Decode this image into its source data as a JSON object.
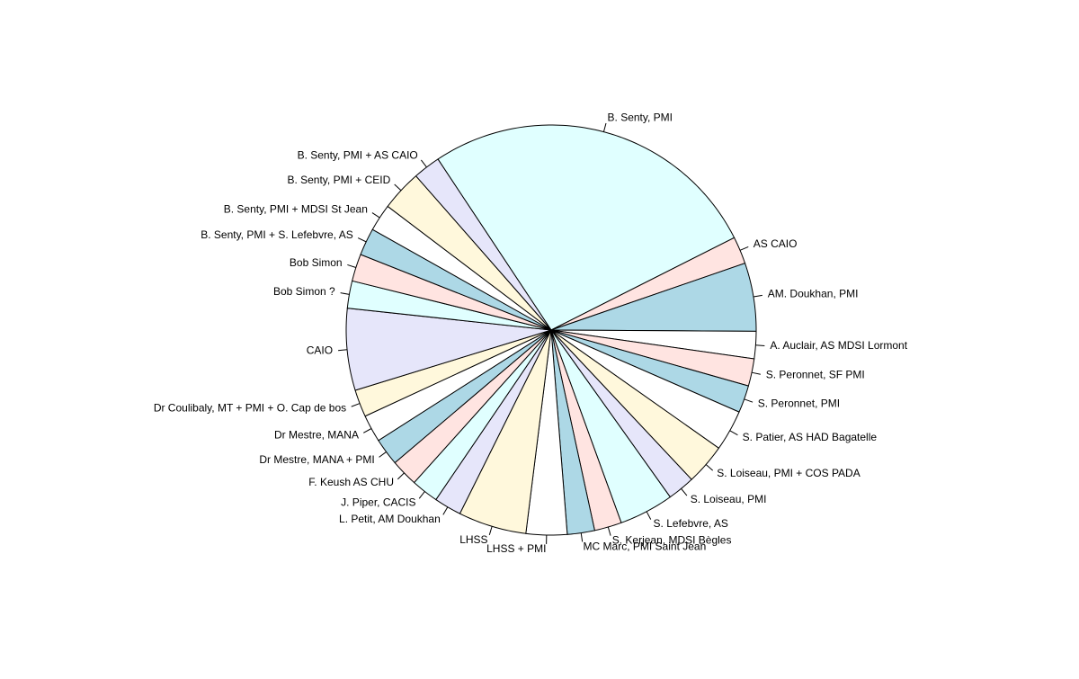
{
  "chart_data": {
    "type": "pie",
    "title": "",
    "start_angle_deg": 123.54,
    "direction": "clockwise",
    "slices": [
      {
        "label": "B. Senty, PMI",
        "value": 25,
        "color": "#E0FFFF"
      },
      {
        "label": "AS CAIO",
        "value": 2,
        "color": "#FFE4E1"
      },
      {
        "label": "AM. Doukhan, PMI",
        "value": 5,
        "color": "#ADD8E6"
      },
      {
        "label": "A. Auclair, AS MDSI Lormont",
        "value": 2,
        "color": "#FFFFFF"
      },
      {
        "label": "S. Peronnet, SF PMI",
        "value": 2,
        "color": "#FFE4E1"
      },
      {
        "label": "S. Peronnet, PMI",
        "value": 2,
        "color": "#ADD8E6"
      },
      {
        "label": "S. Patier, AS HAD Bagatelle",
        "value": 3,
        "color": "#FFFFFF"
      },
      {
        "label": "S. Loiseau, PMI + COS PADA",
        "value": 3,
        "color": "#FFF8DC"
      },
      {
        "label": "S. Loiseau, PMI",
        "value": 2,
        "color": "#E6E6FA"
      },
      {
        "label": "S. Lefebvre, AS",
        "value": 4,
        "color": "#E0FFFF"
      },
      {
        "label": "S. Kerjean, MDSI Bègles",
        "value": 2,
        "color": "#FFE4E1"
      },
      {
        "label": "MC Marc, PMI Saint Jean",
        "value": 2,
        "color": "#ADD8E6"
      },
      {
        "label": "LHSS + PMI",
        "value": 3,
        "color": "#FFFFFF"
      },
      {
        "label": "LHSS",
        "value": 5,
        "color": "#FFF8DC"
      },
      {
        "label": "L. Petit, AM Doukhan",
        "value": 2,
        "color": "#E6E6FA"
      },
      {
        "label": "J. Piper, CACIS",
        "value": 2,
        "color": "#E0FFFF"
      },
      {
        "label": "F. Keush AS CHU",
        "value": 2,
        "color": "#FFE4E1"
      },
      {
        "label": "Dr Mestre, MANA + PMI",
        "value": 2,
        "color": "#ADD8E6"
      },
      {
        "label": "Dr Mestre, MANA",
        "value": 2,
        "color": "#FFFFFF"
      },
      {
        "label": "Dr Coulibaly, MT + PMI + O. Cap de bos",
        "value": 2,
        "color": "#FFF8DC"
      },
      {
        "label": "CAIO",
        "value": 6,
        "color": "#E6E6FA"
      },
      {
        "label": "Bob Simon ?",
        "value": 2,
        "color": "#E0FFFF"
      },
      {
        "label": "Bob Simon",
        "value": 2,
        "color": "#FFE4E1"
      },
      {
        "label": "B. Senty, PMI + S. Lefebvre, AS",
        "value": 2,
        "color": "#ADD8E6"
      },
      {
        "label": "B. Senty, PMI + MDSI St Jean",
        "value": 2,
        "color": "#FFFFFF"
      },
      {
        "label": "B. Senty, PMI + CEID",
        "value": 3,
        "color": "#FFF8DC"
      },
      {
        "label": "B. Senty, PMI + AS CAIO",
        "value": 2,
        "color": "#E6E6FA"
      }
    ]
  }
}
